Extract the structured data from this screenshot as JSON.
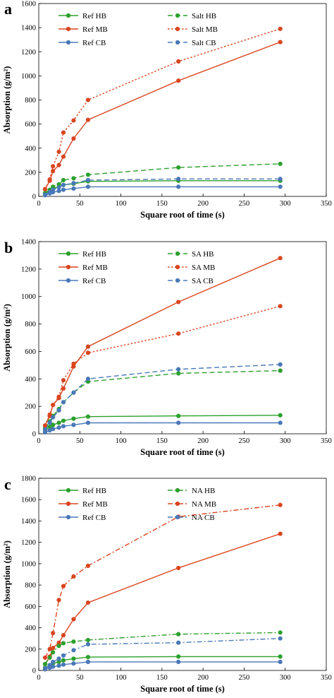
{
  "chart_data": [
    {
      "panel": "a",
      "type": "line",
      "xlabel": "Square root of time (s)",
      "ylabel": "Absorption (g/m²)",
      "xlim": [
        0,
        350
      ],
      "xticks": [
        0,
        50,
        100,
        150,
        200,
        250,
        300,
        350
      ],
      "ylim": [
        0,
        1600
      ],
      "yticks": [
        0,
        200,
        400,
        600,
        800,
        1000,
        1200,
        1400,
        1600
      ],
      "legend": "top-left",
      "series": [
        {
          "name": "Ref HB",
          "color": "#2ca02c",
          "style": "solid",
          "marker": "circle",
          "x": [
            7.7,
            13.4,
            17.3,
            24.5,
            30,
            42.4,
            60,
            170,
            294
          ],
          "y": [
            25,
            50,
            65,
            80,
            95,
            105,
            125,
            130,
            130
          ]
        },
        {
          "name": "Ref MB",
          "color": "#d9451f",
          "style": "solid",
          "marker": "circle",
          "x": [
            7.7,
            13.4,
            17.3,
            24.5,
            30,
            42.4,
            60,
            170,
            294
          ],
          "y": [
            60,
            130,
            210,
            260,
            330,
            480,
            635,
            960,
            1280
          ]
        },
        {
          "name": "Ref CB",
          "color": "#4a78b8",
          "style": "solid",
          "marker": "circle",
          "x": [
            7.7,
            13.4,
            17.3,
            24.5,
            30,
            42.4,
            60,
            170,
            294
          ],
          "y": [
            10,
            25,
            35,
            45,
            55,
            65,
            80,
            80,
            80
          ]
        },
        {
          "name": "Salt HB",
          "color": "#2ca02c",
          "style": "dash",
          "marker": "circle",
          "x": [
            7.7,
            13.4,
            17.3,
            24.5,
            30,
            42.4,
            60,
            170,
            294
          ],
          "y": [
            30,
            55,
            80,
            100,
            135,
            150,
            180,
            240,
            270
          ]
        },
        {
          "name": "Salt MB",
          "color": "#d9451f",
          "style": "dot",
          "marker": "circle",
          "x": [
            7.7,
            13.4,
            17.3,
            24.5,
            30,
            42.4,
            60,
            170,
            294
          ],
          "y": [
            60,
            140,
            250,
            370,
            530,
            630,
            800,
            1120,
            1390
          ]
        },
        {
          "name": "Salt CB",
          "color": "#4a78b8",
          "style": "dash",
          "marker": "circle",
          "x": [
            7.7,
            13.4,
            17.3,
            24.5,
            30,
            42.4,
            60,
            170,
            294
          ],
          "y": [
            15,
            35,
            55,
            75,
            95,
            110,
            135,
            145,
            145
          ]
        }
      ]
    },
    {
      "panel": "b",
      "type": "line",
      "xlabel": "Square root of time (s)",
      "ylabel": "Absorption (g/m²)",
      "xlim": [
        0,
        350
      ],
      "xticks": [
        0,
        50,
        100,
        150,
        200,
        250,
        300,
        350
      ],
      "ylim": [
        0,
        1400
      ],
      "yticks": [
        0,
        200,
        400,
        600,
        800,
        1000,
        1200,
        1400
      ],
      "legend": "top-left",
      "series": [
        {
          "name": "Ref HB",
          "color": "#2ca02c",
          "style": "solid",
          "marker": "circle",
          "x": [
            7.7,
            13.4,
            17.3,
            24.5,
            30,
            42.4,
            60,
            170,
            294
          ],
          "y": [
            25,
            50,
            65,
            80,
            95,
            110,
            125,
            130,
            135
          ]
        },
        {
          "name": "Ref MB",
          "color": "#d9451f",
          "style": "solid",
          "marker": "circle",
          "x": [
            7.7,
            13.4,
            17.3,
            24.5,
            30,
            42.4,
            60,
            170,
            294
          ],
          "y": [
            60,
            130,
            210,
            260,
            330,
            490,
            635,
            960,
            1280
          ]
        },
        {
          "name": "Ref CB",
          "color": "#4a78b8",
          "style": "solid",
          "marker": "circle",
          "x": [
            7.7,
            13.4,
            17.3,
            24.5,
            30,
            42.4,
            60,
            170,
            294
          ],
          "y": [
            10,
            25,
            35,
            45,
            55,
            65,
            80,
            80,
            80
          ]
        },
        {
          "name": "SA HB",
          "color": "#2ca02c",
          "style": "dash",
          "marker": "circle",
          "x": [
            7.7,
            13.4,
            17.3,
            24.5,
            30,
            42.4,
            60,
            170,
            294
          ],
          "y": [
            40,
            90,
            130,
            180,
            230,
            300,
            380,
            440,
            460
          ]
        },
        {
          "name": "SA MB",
          "color": "#d9451f",
          "style": "dot",
          "marker": "circle",
          "x": [
            7.7,
            13.4,
            17.3,
            24.5,
            30,
            42.4,
            60,
            170,
            294
          ],
          "y": [
            60,
            140,
            210,
            270,
            390,
            510,
            590,
            730,
            930
          ]
        },
        {
          "name": "SA CB",
          "color": "#4a78b8",
          "style": "dash",
          "marker": "circle",
          "x": [
            7.7,
            13.4,
            17.3,
            24.5,
            30,
            42.4,
            60,
            170,
            294
          ],
          "y": [
            30,
            80,
            120,
            170,
            230,
            300,
            400,
            470,
            505
          ]
        }
      ]
    },
    {
      "panel": "c",
      "type": "line",
      "xlabel": "Square root of time (s)",
      "ylabel": "Absorption (g/m²)",
      "xlim": [
        0,
        350
      ],
      "xticks": [
        0,
        50,
        100,
        150,
        200,
        250,
        300,
        350
      ],
      "ylim": [
        0,
        1800
      ],
      "yticks": [
        0,
        200,
        400,
        600,
        800,
        1000,
        1200,
        1400,
        1600,
        1800
      ],
      "legend": "top-left",
      "series": [
        {
          "name": "Ref HB",
          "color": "#2ca02c",
          "style": "solid",
          "marker": "circle",
          "x": [
            7.7,
            13.4,
            17.3,
            24.5,
            30,
            42.4,
            60,
            170,
            294
          ],
          "y": [
            25,
            50,
            65,
            80,
            95,
            110,
            125,
            130,
            130
          ]
        },
        {
          "name": "Ref MB",
          "color": "#d9451f",
          "style": "solid",
          "marker": "circle",
          "x": [
            7.7,
            13.4,
            17.3,
            24.5,
            30,
            42.4,
            60,
            170,
            294
          ],
          "y": [
            60,
            130,
            210,
            260,
            330,
            480,
            635,
            960,
            1280
          ]
        },
        {
          "name": "Ref CB",
          "color": "#4a78b8",
          "style": "solid",
          "marker": "circle",
          "x": [
            7.7,
            13.4,
            17.3,
            24.5,
            30,
            42.4,
            60,
            170,
            294
          ],
          "y": [
            10,
            25,
            35,
            45,
            55,
            65,
            80,
            80,
            80
          ]
        },
        {
          "name": "NA HB",
          "color": "#2ca02c",
          "style": "dashdot",
          "marker": "circle",
          "x": [
            7.7,
            13.4,
            17.3,
            24.5,
            30,
            42.4,
            60,
            170,
            294
          ],
          "y": [
            60,
            120,
            170,
            230,
            255,
            270,
            285,
            340,
            355
          ]
        },
        {
          "name": "NA MB",
          "color": "#d9451f",
          "style": "dashdot",
          "marker": "circle",
          "x": [
            7.7,
            13.4,
            17.3,
            24.5,
            30,
            42.4,
            60,
            170,
            294
          ],
          "y": [
            120,
            200,
            350,
            660,
            790,
            880,
            980,
            1440,
            1550
          ]
        },
        {
          "name": "NA CB",
          "color": "#4a78b8",
          "style": "dashdot",
          "marker": "circle",
          "x": [
            7.7,
            13.4,
            17.3,
            24.5,
            30,
            42.4,
            60,
            170,
            294
          ],
          "y": [
            20,
            50,
            80,
            110,
            140,
            190,
            245,
            260,
            300
          ]
        }
      ]
    }
  ]
}
